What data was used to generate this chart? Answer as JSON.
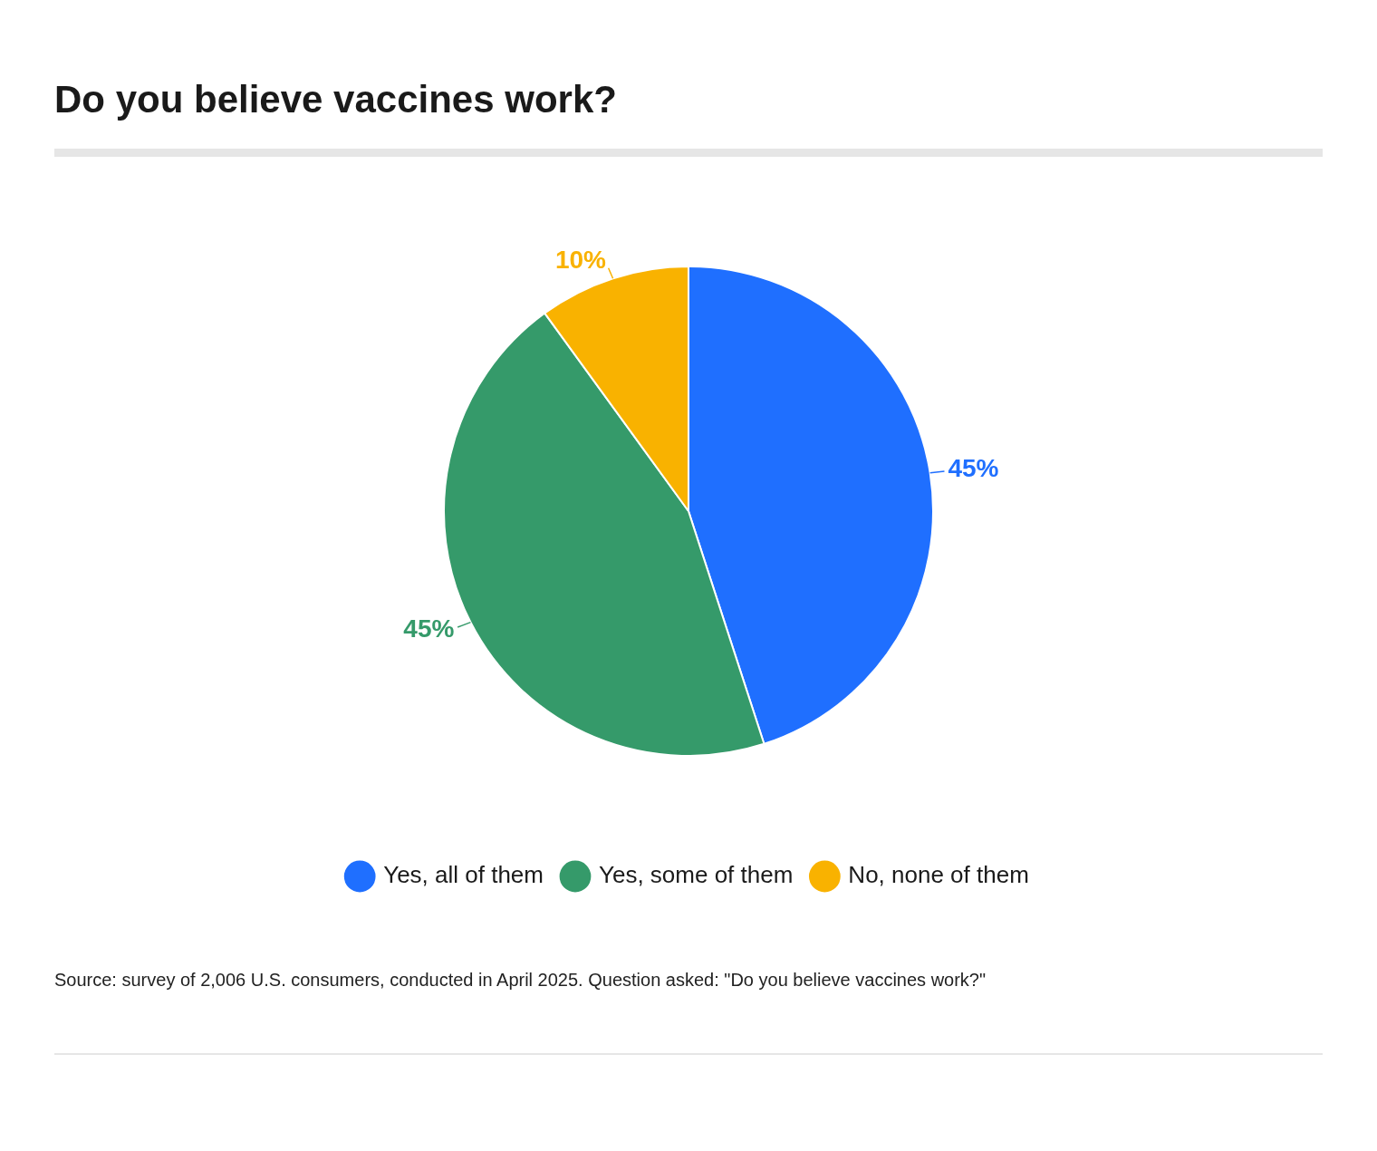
{
  "chart_data": {
    "type": "pie",
    "title": "Do you believe vaccines work?",
    "categories": [
      "Yes, all of them",
      "Yes, some of them",
      "No, none of them"
    ],
    "values": [
      45,
      45,
      10
    ],
    "colors": [
      "#1f6fff",
      "#359a6a",
      "#f9b200"
    ],
    "value_labels": [
      "45%",
      "45%",
      "10%"
    ],
    "legend": "bottom",
    "annotations": [
      "Source: survey of 2,006 U.S. consumers, conducted in April 2025. Question asked: \"Do you believe vaccines work?\""
    ]
  }
}
